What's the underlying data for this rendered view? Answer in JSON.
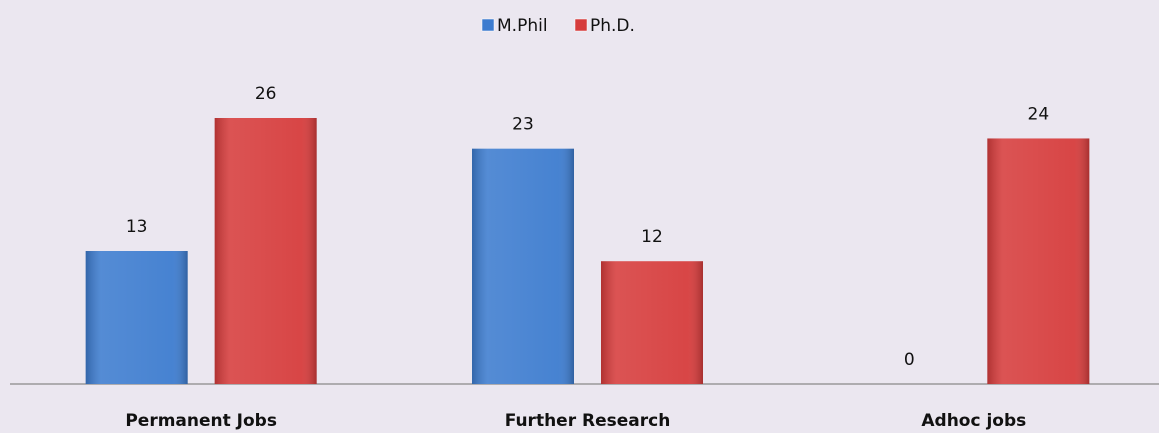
{
  "chart_data": {
    "type": "bar",
    "categories": [
      "Permanent Jobs",
      "Further Research",
      "Adhoc jobs"
    ],
    "series": [
      {
        "name": "M.Phil",
        "color": "#3d7ccf",
        "values": [
          13,
          23,
          0
        ]
      },
      {
        "name": "Ph.D.",
        "color": "#d63c3c",
        "values": [
          26,
          12,
          24
        ]
      }
    ],
    "legend": "top"
  }
}
